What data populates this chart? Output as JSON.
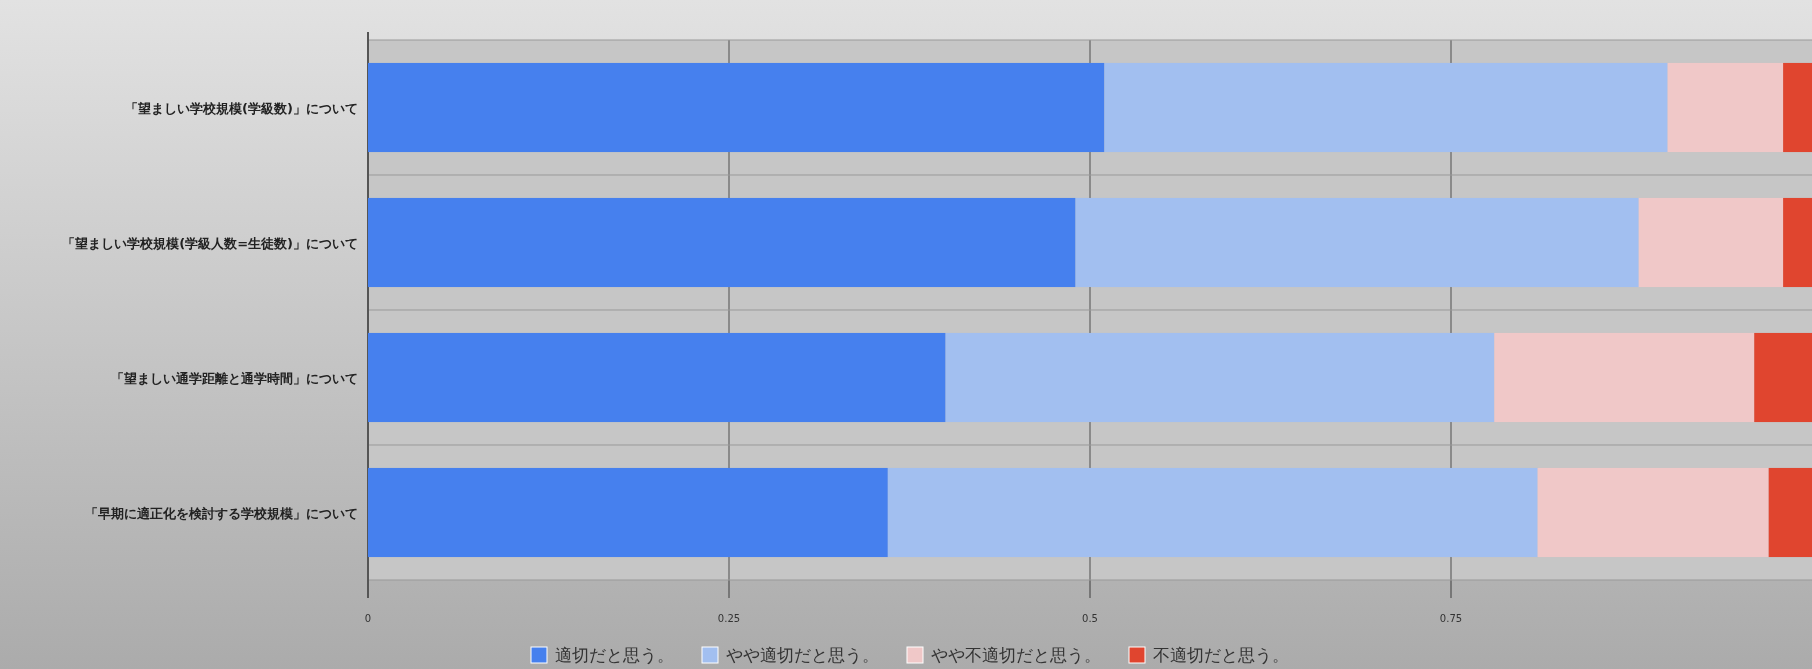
{
  "chart_data": {
    "type": "bar",
    "orientation": "horizontal",
    "stacked": true,
    "categories": [
      "「望ましい学校規模(学級数)」について",
      "「望ましい学校規模(学級人数=生徒数)」について",
      "「望ましい通学距離と通学時間」について",
      "「早期に適正化を検討する学校規模」について"
    ],
    "series": [
      {
        "name": "適切だと思う。",
        "color": "#4680ee",
        "values": [
          0.51,
          0.49,
          0.4,
          0.36
        ]
      },
      {
        "name": "やや適切だと思う。",
        "color": "#a2bff0",
        "values": [
          0.39,
          0.39,
          0.38,
          0.45
        ]
      },
      {
        "name": "やや不適切だと思う。",
        "color": "#f0c8c8",
        "values": [
          0.08,
          0.1,
          0.18,
          0.16
        ]
      },
      {
        "name": "不適切だと思う。",
        "color": "#e0452f",
        "values": [
          0.02,
          0.02,
          0.04,
          0.03
        ]
      }
    ],
    "xlim": [
      0,
      1
    ],
    "xticks": [
      0,
      0.25,
      0.5,
      0.75
    ],
    "grid": "x",
    "legend": "bottom"
  }
}
